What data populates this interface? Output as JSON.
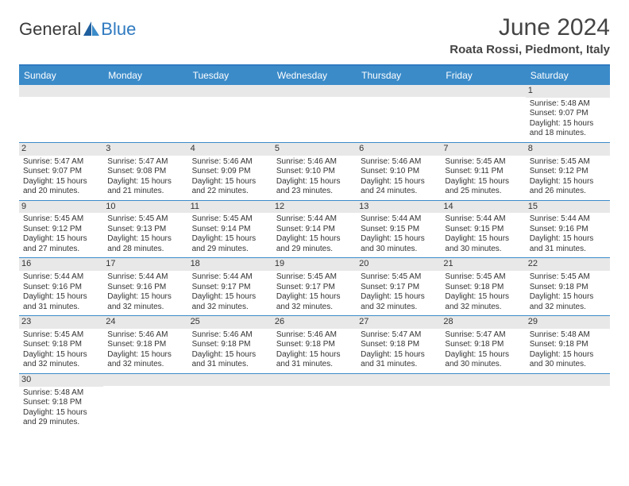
{
  "logo": {
    "text1": "General",
    "text2": "Blue"
  },
  "title": "June 2024",
  "location": "Roata Rossi, Piedmont, Italy",
  "colors": {
    "header_bg": "#3b8bc9",
    "accent": "#2f7ac0",
    "daynum_bg": "#e8e8e8"
  },
  "day_names": [
    "Sunday",
    "Monday",
    "Tuesday",
    "Wednesday",
    "Thursday",
    "Friday",
    "Saturday"
  ],
  "weeks": [
    [
      {
        "empty": true
      },
      {
        "empty": true
      },
      {
        "empty": true
      },
      {
        "empty": true
      },
      {
        "empty": true
      },
      {
        "empty": true
      },
      {
        "n": "1",
        "sr": "Sunrise: 5:48 AM",
        "ss": "Sunset: 9:07 PM",
        "d1": "Daylight: 15 hours",
        "d2": "and 18 minutes."
      }
    ],
    [
      {
        "n": "2",
        "sr": "Sunrise: 5:47 AM",
        "ss": "Sunset: 9:07 PM",
        "d1": "Daylight: 15 hours",
        "d2": "and 20 minutes."
      },
      {
        "n": "3",
        "sr": "Sunrise: 5:47 AM",
        "ss": "Sunset: 9:08 PM",
        "d1": "Daylight: 15 hours",
        "d2": "and 21 minutes."
      },
      {
        "n": "4",
        "sr": "Sunrise: 5:46 AM",
        "ss": "Sunset: 9:09 PM",
        "d1": "Daylight: 15 hours",
        "d2": "and 22 minutes."
      },
      {
        "n": "5",
        "sr": "Sunrise: 5:46 AM",
        "ss": "Sunset: 9:10 PM",
        "d1": "Daylight: 15 hours",
        "d2": "and 23 minutes."
      },
      {
        "n": "6",
        "sr": "Sunrise: 5:46 AM",
        "ss": "Sunset: 9:10 PM",
        "d1": "Daylight: 15 hours",
        "d2": "and 24 minutes."
      },
      {
        "n": "7",
        "sr": "Sunrise: 5:45 AM",
        "ss": "Sunset: 9:11 PM",
        "d1": "Daylight: 15 hours",
        "d2": "and 25 minutes."
      },
      {
        "n": "8",
        "sr": "Sunrise: 5:45 AM",
        "ss": "Sunset: 9:12 PM",
        "d1": "Daylight: 15 hours",
        "d2": "and 26 minutes."
      }
    ],
    [
      {
        "n": "9",
        "sr": "Sunrise: 5:45 AM",
        "ss": "Sunset: 9:12 PM",
        "d1": "Daylight: 15 hours",
        "d2": "and 27 minutes."
      },
      {
        "n": "10",
        "sr": "Sunrise: 5:45 AM",
        "ss": "Sunset: 9:13 PM",
        "d1": "Daylight: 15 hours",
        "d2": "and 28 minutes."
      },
      {
        "n": "11",
        "sr": "Sunrise: 5:45 AM",
        "ss": "Sunset: 9:14 PM",
        "d1": "Daylight: 15 hours",
        "d2": "and 29 minutes."
      },
      {
        "n": "12",
        "sr": "Sunrise: 5:44 AM",
        "ss": "Sunset: 9:14 PM",
        "d1": "Daylight: 15 hours",
        "d2": "and 29 minutes."
      },
      {
        "n": "13",
        "sr": "Sunrise: 5:44 AM",
        "ss": "Sunset: 9:15 PM",
        "d1": "Daylight: 15 hours",
        "d2": "and 30 minutes."
      },
      {
        "n": "14",
        "sr": "Sunrise: 5:44 AM",
        "ss": "Sunset: 9:15 PM",
        "d1": "Daylight: 15 hours",
        "d2": "and 30 minutes."
      },
      {
        "n": "15",
        "sr": "Sunrise: 5:44 AM",
        "ss": "Sunset: 9:16 PM",
        "d1": "Daylight: 15 hours",
        "d2": "and 31 minutes."
      }
    ],
    [
      {
        "n": "16",
        "sr": "Sunrise: 5:44 AM",
        "ss": "Sunset: 9:16 PM",
        "d1": "Daylight: 15 hours",
        "d2": "and 31 minutes."
      },
      {
        "n": "17",
        "sr": "Sunrise: 5:44 AM",
        "ss": "Sunset: 9:16 PM",
        "d1": "Daylight: 15 hours",
        "d2": "and 32 minutes."
      },
      {
        "n": "18",
        "sr": "Sunrise: 5:44 AM",
        "ss": "Sunset: 9:17 PM",
        "d1": "Daylight: 15 hours",
        "d2": "and 32 minutes."
      },
      {
        "n": "19",
        "sr": "Sunrise: 5:45 AM",
        "ss": "Sunset: 9:17 PM",
        "d1": "Daylight: 15 hours",
        "d2": "and 32 minutes."
      },
      {
        "n": "20",
        "sr": "Sunrise: 5:45 AM",
        "ss": "Sunset: 9:17 PM",
        "d1": "Daylight: 15 hours",
        "d2": "and 32 minutes."
      },
      {
        "n": "21",
        "sr": "Sunrise: 5:45 AM",
        "ss": "Sunset: 9:18 PM",
        "d1": "Daylight: 15 hours",
        "d2": "and 32 minutes."
      },
      {
        "n": "22",
        "sr": "Sunrise: 5:45 AM",
        "ss": "Sunset: 9:18 PM",
        "d1": "Daylight: 15 hours",
        "d2": "and 32 minutes."
      }
    ],
    [
      {
        "n": "23",
        "sr": "Sunrise: 5:45 AM",
        "ss": "Sunset: 9:18 PM",
        "d1": "Daylight: 15 hours",
        "d2": "and 32 minutes."
      },
      {
        "n": "24",
        "sr": "Sunrise: 5:46 AM",
        "ss": "Sunset: 9:18 PM",
        "d1": "Daylight: 15 hours",
        "d2": "and 32 minutes."
      },
      {
        "n": "25",
        "sr": "Sunrise: 5:46 AM",
        "ss": "Sunset: 9:18 PM",
        "d1": "Daylight: 15 hours",
        "d2": "and 31 minutes."
      },
      {
        "n": "26",
        "sr": "Sunrise: 5:46 AM",
        "ss": "Sunset: 9:18 PM",
        "d1": "Daylight: 15 hours",
        "d2": "and 31 minutes."
      },
      {
        "n": "27",
        "sr": "Sunrise: 5:47 AM",
        "ss": "Sunset: 9:18 PM",
        "d1": "Daylight: 15 hours",
        "d2": "and 31 minutes."
      },
      {
        "n": "28",
        "sr": "Sunrise: 5:47 AM",
        "ss": "Sunset: 9:18 PM",
        "d1": "Daylight: 15 hours",
        "d2": "and 30 minutes."
      },
      {
        "n": "29",
        "sr": "Sunrise: 5:48 AM",
        "ss": "Sunset: 9:18 PM",
        "d1": "Daylight: 15 hours",
        "d2": "and 30 minutes."
      }
    ],
    [
      {
        "n": "30",
        "sr": "Sunrise: 5:48 AM",
        "ss": "Sunset: 9:18 PM",
        "d1": "Daylight: 15 hours",
        "d2": "and 29 minutes."
      },
      {
        "empty": true
      },
      {
        "empty": true
      },
      {
        "empty": true
      },
      {
        "empty": true
      },
      {
        "empty": true
      },
      {
        "empty": true
      }
    ]
  ]
}
